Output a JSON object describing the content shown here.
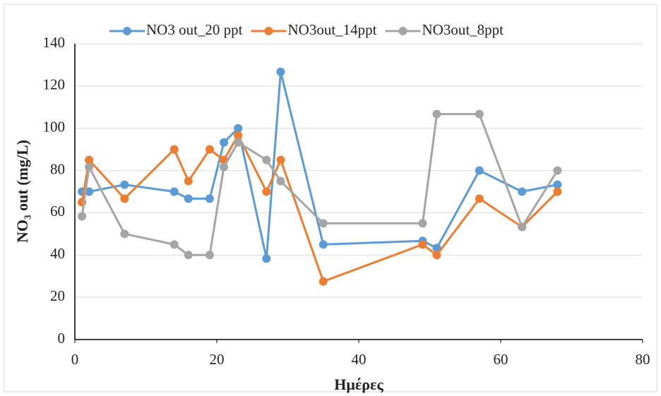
{
  "chart_data": {
    "type": "line",
    "x": [
      1,
      2,
      7,
      14,
      16,
      19,
      21,
      23,
      27,
      29,
      35,
      49,
      51,
      57,
      63,
      68
    ],
    "series": [
      {
        "name": "NO3 out_20 ppt",
        "color": "#5b9bd5",
        "values": [
          70,
          70,
          73.3,
          70,
          66.7,
          66.7,
          93.3,
          100,
          38.3,
          126.7,
          45,
          46.7,
          43.3,
          80,
          70,
          73.3
        ]
      },
      {
        "name": "NO3out_14ppt",
        "color": "#ed7d31",
        "values": [
          65,
          85,
          66.7,
          90,
          75,
          90,
          85,
          96.7,
          70,
          85,
          27.5,
          45,
          40,
          66.7,
          53.3,
          70
        ]
      },
      {
        "name": "NO3out_8ppt",
        "color": "#a5a5a5",
        "values": [
          58.3,
          81.7,
          50,
          45,
          40,
          40,
          81.7,
          93.3,
          85,
          75,
          55,
          55,
          106.7,
          106.7,
          53.3,
          80
        ]
      }
    ],
    "x_label": "Ημέρες",
    "y_label": "NO₃ out (mg/L)",
    "xlim": [
      0,
      80
    ],
    "xticks": [
      0,
      20,
      40,
      60,
      80
    ],
    "ylim": [
      0,
      140
    ],
    "yticks": [
      0,
      20,
      40,
      60,
      80,
      100,
      120,
      140
    ],
    "grid": true,
    "legend": "top"
  }
}
